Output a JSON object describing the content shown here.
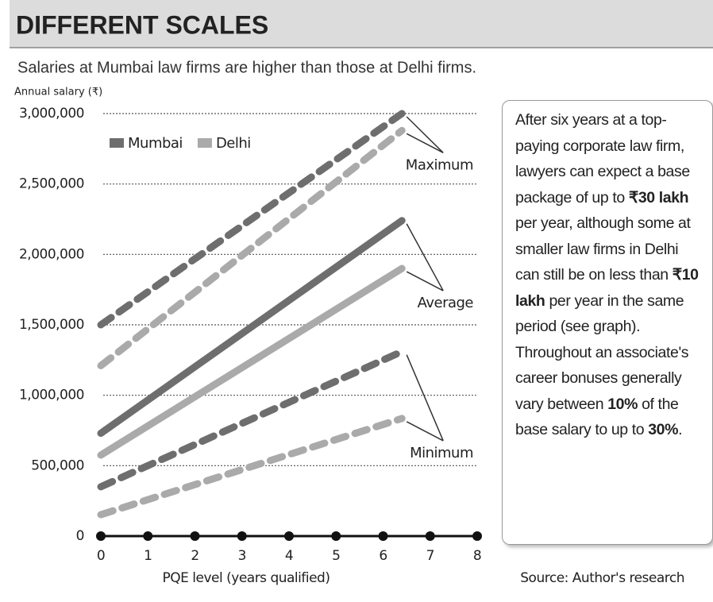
{
  "chart_data": {
    "type": "line",
    "title": "DIFFERENT SCALES",
    "subtitle": "Salaries at Mumbai law firms are higher than those at Delhi firms.",
    "y_label": "Annual salary (₹)",
    "x_label": "PQE level (years qualified)",
    "source": "Source: Author's research",
    "x": [
      0,
      6.4
    ],
    "xlim": [
      0,
      8
    ],
    "xticks": [
      0,
      1,
      2,
      3,
      4,
      5,
      6,
      7,
      8
    ],
    "ylim": [
      0,
      3000000
    ],
    "yticks": [
      0,
      {
        "value": 500000,
        "label": "500,000"
      },
      {
        "value": 1000000,
        "label": "1,000,000"
      },
      {
        "value": 1500000,
        "label": "1,500,000"
      },
      {
        "value": 2000000,
        "label": "2,000,000"
      },
      {
        "value": 2500000,
        "label": "2,500,000"
      },
      {
        "value": 3000000,
        "label": "3,000,000"
      }
    ],
    "grid": true,
    "series": [
      {
        "name": "Mumbai",
        "level": "Maximum",
        "color": "#6e6e6e",
        "dashed": true,
        "values": [
          1500000,
          3000000
        ]
      },
      {
        "name": "Delhi",
        "level": "Maximum",
        "color": "#aaaaaa",
        "dashed": true,
        "values": [
          1210000,
          2880000
        ]
      },
      {
        "name": "Mumbai",
        "level": "Average",
        "color": "#6e6e6e",
        "dashed": false,
        "values": [
          730000,
          2240000
        ]
      },
      {
        "name": "Delhi",
        "level": "Average",
        "color": "#aaaaaa",
        "dashed": false,
        "values": [
          575000,
          1900000
        ]
      },
      {
        "name": "Mumbai",
        "level": "Minimum",
        "color": "#6e6e6e",
        "dashed": true,
        "values": [
          350000,
          1310000
        ]
      },
      {
        "name": "Delhi",
        "level": "Minimum",
        "color": "#aaaaaa",
        "dashed": true,
        "values": [
          152000,
          835000
        ]
      }
    ],
    "note": [
      {
        "text": "After six years at a top-paying corporate law firm, lawyers can expect a base package of up to ",
        "bold": false
      },
      {
        "text": "₹30 lakh",
        "bold": true
      },
      {
        "text": " per year, although some at smaller law firms in Delhi can still be on less than ",
        "bold": false
      },
      {
        "text": "₹10 lakh",
        "bold": true
      },
      {
        "text": " per year in the same period (see graph). Throughout an associate's career bonuses generally vary between ",
        "bold": false
      },
      {
        "text": "10%",
        "bold": true
      },
      {
        "text": " of the base salary to up to ",
        "bold": false
      },
      {
        "text": "30%",
        "bold": true
      },
      {
        "text": ".",
        "bold": false
      }
    ]
  }
}
